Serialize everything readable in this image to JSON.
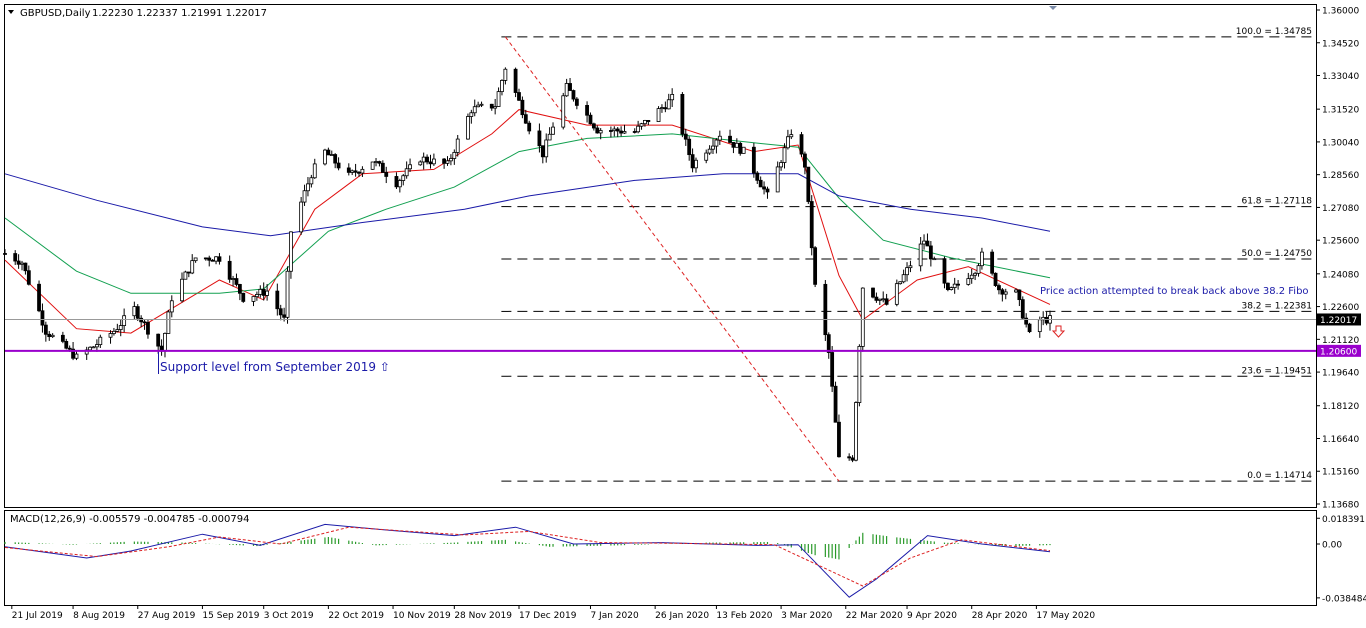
{
  "header": {
    "symbol": "GBPUSD,Daily",
    "ohlc": "1.22230 1.22337 1.21991 1.22017",
    "macd_label": "MACD(12,26,9) -0.005579 -0.004785 -0.000794"
  },
  "colors": {
    "background": "#ffffff",
    "axis_text": "#000000",
    "candle_up": "#ffffff",
    "candle_down": "#000000",
    "ema_fast": "#e01010",
    "ema_mid": "#12a050",
    "ema_slow": "#1a1aa8",
    "fib_lines": "#000000",
    "trend_line": "#dd2222",
    "support_line": "#9900cc",
    "price_tag": "#000000",
    "support_tag": "#9900cc",
    "annotation_text": "#1a1aa8",
    "macd_hist": "#2a9a2a",
    "macd_line": "#1a1aa8",
    "macd_signal": "#dd2222"
  },
  "icons": {
    "support_arrow": "up-arrow-icon",
    "break_arrow": "down-arrow-icon",
    "collapse": "triangle-down-icon"
  },
  "annotations": {
    "support": "Support level from September 2019 ⇧",
    "price_action": "Price action attempted to break back above 38.2 Fibo"
  },
  "chart_data": [
    {
      "type": "candlestick",
      "title": "GBPUSD,Daily",
      "y_axis_ticks": [
        "1.36000",
        "1.34520",
        "1.33040",
        "1.31520",
        "1.30040",
        "1.28560",
        "1.27080",
        "1.25600",
        "1.24080",
        "1.22600",
        "1.21120",
        "1.19640",
        "1.18120",
        "1.16640",
        "1.15160",
        "1.13680"
      ],
      "ylim": [
        1.1368,
        1.36
      ],
      "x_axis_ticks": [
        "21 Jul 2019",
        "8 Aug 2019",
        "27 Aug 2019",
        "15 Sep 2019",
        "3 Oct 2019",
        "22 Oct 2019",
        "10 Nov 2019",
        "28 Nov 2019",
        "17 Dec 2019",
        "7 Jan 2020",
        "26 Jan 2020",
        "13 Feb 2020",
        "3 Mar 2020",
        "22 Mar 2020",
        "9 Apr 2020",
        "28 Apr 2020",
        "17 May 2020"
      ],
      "x_range": [
        "2019-07-19",
        "2020-05-21"
      ],
      "close_anchors": [
        {
          "date": "2019-07-19",
          "close": 1.25
        },
        {
          "date": "2019-07-24",
          "close": 1.246
        },
        {
          "date": "2019-07-31",
          "close": 1.215
        },
        {
          "date": "2019-08-09",
          "close": 1.203
        },
        {
          "date": "2019-08-14",
          "close": 1.208
        },
        {
          "date": "2019-08-20",
          "close": 1.215
        },
        {
          "date": "2019-08-26",
          "close": 1.225
        },
        {
          "date": "2019-09-03",
          "close": 1.206
        },
        {
          "date": "2019-09-06",
          "close": 1.23
        },
        {
          "date": "2019-09-13",
          "close": 1.248
        },
        {
          "date": "2019-09-20",
          "close": 1.248
        },
        {
          "date": "2019-09-27",
          "close": 1.23
        },
        {
          "date": "2019-10-04",
          "close": 1.233
        },
        {
          "date": "2019-10-09",
          "close": 1.22
        },
        {
          "date": "2019-10-11",
          "close": 1.26
        },
        {
          "date": "2019-10-17",
          "close": 1.286
        },
        {
          "date": "2019-10-21",
          "close": 1.296
        },
        {
          "date": "2019-10-28",
          "close": 1.285
        },
        {
          "date": "2019-11-04",
          "close": 1.292
        },
        {
          "date": "2019-11-11",
          "close": 1.282
        },
        {
          "date": "2019-11-18",
          "close": 1.293
        },
        {
          "date": "2019-11-26",
          "close": 1.29
        },
        {
          "date": "2019-12-03",
          "close": 1.315
        },
        {
          "date": "2019-12-10",
          "close": 1.317
        },
        {
          "date": "2019-12-13",
          "close": 1.334
        },
        {
          "date": "2019-12-20",
          "close": 1.307
        },
        {
          "date": "2019-12-24",
          "close": 1.295
        },
        {
          "date": "2019-12-31",
          "close": 1.325
        },
        {
          "date": "2020-01-09",
          "close": 1.306
        },
        {
          "date": "2020-01-20",
          "close": 1.305
        },
        {
          "date": "2020-01-31",
          "close": 1.32
        },
        {
          "date": "2020-02-06",
          "close": 1.29
        },
        {
          "date": "2020-02-14",
          "close": 1.304
        },
        {
          "date": "2020-02-21",
          "close": 1.296
        },
        {
          "date": "2020-02-28",
          "close": 1.276
        },
        {
          "date": "2020-03-06",
          "close": 1.305
        },
        {
          "date": "2020-03-10",
          "close": 1.29
        },
        {
          "date": "2020-03-13",
          "close": 1.235
        },
        {
          "date": "2020-03-17",
          "close": 1.205
        },
        {
          "date": "2020-03-20",
          "close": 1.157
        },
        {
          "date": "2020-03-24",
          "close": 1.158
        },
        {
          "date": "2020-03-27",
          "close": 1.235
        },
        {
          "date": "2020-04-03",
          "close": 1.227
        },
        {
          "date": "2020-04-10",
          "close": 1.245
        },
        {
          "date": "2020-04-14",
          "close": 1.256
        },
        {
          "date": "2020-04-21",
          "close": 1.232
        },
        {
          "date": "2020-04-29",
          "close": 1.243
        },
        {
          "date": "2020-05-01",
          "close": 1.249
        },
        {
          "date": "2020-05-06",
          "close": 1.234
        },
        {
          "date": "2020-05-11",
          "close": 1.232
        },
        {
          "date": "2020-05-15",
          "close": 1.213
        },
        {
          "date": "2020-05-18",
          "close": 1.22
        },
        {
          "date": "2020-05-21",
          "close": 1.2202
        }
      ],
      "moving_averages": [
        {
          "color_key": "ema_fast",
          "points": [
            {
              "date": "2019-07-19",
              "value": 1.247
            },
            {
              "date": "2019-08-09",
              "value": 1.216
            },
            {
              "date": "2019-08-25",
              "value": 1.214
            },
            {
              "date": "2019-09-20",
              "value": 1.238
            },
            {
              "date": "2019-10-03",
              "value": 1.229
            },
            {
              "date": "2019-10-18",
              "value": 1.27
            },
            {
              "date": "2019-11-01",
              "value": 1.286
            },
            {
              "date": "2019-11-22",
              "value": 1.288
            },
            {
              "date": "2019-12-09",
              "value": 1.304
            },
            {
              "date": "2019-12-17",
              "value": 1.315
            },
            {
              "date": "2020-01-06",
              "value": 1.308
            },
            {
              "date": "2020-01-31",
              "value": 1.308
            },
            {
              "date": "2020-02-24",
              "value": 1.296
            },
            {
              "date": "2020-03-08",
              "value": 1.299
            },
            {
              "date": "2020-03-20",
              "value": 1.24
            },
            {
              "date": "2020-03-27",
              "value": 1.22
            },
            {
              "date": "2020-04-12",
              "value": 1.238
            },
            {
              "date": "2020-04-27",
              "value": 1.244
            },
            {
              "date": "2020-05-21",
              "value": 1.227
            }
          ]
        },
        {
          "color_key": "ema_mid",
          "points": [
            {
              "date": "2019-07-19",
              "value": 1.266
            },
            {
              "date": "2019-08-09",
              "value": 1.242
            },
            {
              "date": "2019-08-25",
              "value": 1.232
            },
            {
              "date": "2019-09-20",
              "value": 1.232
            },
            {
              "date": "2019-10-03",
              "value": 1.234
            },
            {
              "date": "2019-10-22",
              "value": 1.26
            },
            {
              "date": "2019-11-08",
              "value": 1.27
            },
            {
              "date": "2019-11-28",
              "value": 1.28
            },
            {
              "date": "2019-12-17",
              "value": 1.296
            },
            {
              "date": "2020-01-06",
              "value": 1.302
            },
            {
              "date": "2020-01-31",
              "value": 1.304
            },
            {
              "date": "2020-02-24",
              "value": 1.3
            },
            {
              "date": "2020-03-08",
              "value": 1.298
            },
            {
              "date": "2020-03-20",
              "value": 1.275
            },
            {
              "date": "2020-04-02",
              "value": 1.256
            },
            {
              "date": "2020-04-22",
              "value": 1.248
            },
            {
              "date": "2020-05-21",
              "value": 1.239
            }
          ]
        },
        {
          "color_key": "ema_slow",
          "points": [
            {
              "date": "2019-07-19",
              "value": 1.286
            },
            {
              "date": "2019-08-15",
              "value": 1.274
            },
            {
              "date": "2019-09-15",
              "value": 1.262
            },
            {
              "date": "2019-10-05",
              "value": 1.258
            },
            {
              "date": "2019-11-01",
              "value": 1.264
            },
            {
              "date": "2019-12-01",
              "value": 1.27
            },
            {
              "date": "2019-12-20",
              "value": 1.276
            },
            {
              "date": "2020-01-20",
              "value": 1.283
            },
            {
              "date": "2020-02-15",
              "value": 1.286
            },
            {
              "date": "2020-03-08",
              "value": 1.286
            },
            {
              "date": "2020-03-20",
              "value": 1.276
            },
            {
              "date": "2020-04-10",
              "value": 1.27
            },
            {
              "date": "2020-05-01",
              "value": 1.266
            },
            {
              "date": "2020-05-21",
              "value": 1.26
            }
          ]
        }
      ],
      "fibonacci": {
        "start_date": "2019-12-13",
        "end_date": "2020-05-21",
        "levels": [
          {
            "label": "100.0 = 1.34785",
            "value": 1.34785
          },
          {
            "label": "61.8 = 1.27118",
            "value": 1.27118
          },
          {
            "label": "50.0 = 1.24750",
            "value": 1.2475
          },
          {
            "label": "38.2 = 1.22381",
            "value": 1.22381
          },
          {
            "label": "23.6 = 1.19451",
            "value": 1.19451
          },
          {
            "label": "0.0 = 1.14714",
            "value": 1.14714
          }
        ]
      },
      "trend_line": {
        "start": {
          "date": "2019-12-13",
          "value": 1.34785
        },
        "end": {
          "date": "2020-03-20",
          "value": 1.14714
        }
      },
      "support": {
        "value": 1.206,
        "label": "1.20600"
      },
      "current_price": {
        "value": 1.22017,
        "label": "1.22017"
      }
    },
    {
      "type": "macd",
      "title": "MACD(12,26,9) -0.005579 -0.004785 -0.000794",
      "y_axis_ticks": [
        "0.018391",
        "0.00",
        "-0.038484"
      ],
      "ylim": [
        -0.04,
        0.02
      ],
      "histogram_anchors": [
        {
          "date": "2019-07-19",
          "value": 0.0015
        },
        {
          "date": "2019-08-08",
          "value": -0.0005
        },
        {
          "date": "2019-08-25",
          "value": 0.0018
        },
        {
          "date": "2019-09-10",
          "value": 0.001
        },
        {
          "date": "2019-10-01",
          "value": -0.0015
        },
        {
          "date": "2019-10-22",
          "value": 0.005
        },
        {
          "date": "2019-11-05",
          "value": -0.001
        },
        {
          "date": "2019-11-28",
          "value": 0.001
        },
        {
          "date": "2019-12-13",
          "value": 0.003
        },
        {
          "date": "2019-12-26",
          "value": -0.002
        },
        {
          "date": "2020-01-15",
          "value": -0.001
        },
        {
          "date": "2020-02-10",
          "value": 0.001
        },
        {
          "date": "2020-03-01",
          "value": 0.0015
        },
        {
          "date": "2020-03-13",
          "value": -0.008
        },
        {
          "date": "2020-03-20",
          "value": -0.011
        },
        {
          "date": "2020-03-27",
          "value": 0.008
        },
        {
          "date": "2020-04-05",
          "value": 0.005
        },
        {
          "date": "2020-04-20",
          "value": 0.001
        },
        {
          "date": "2020-05-10",
          "value": -0.0015
        },
        {
          "date": "2020-05-21",
          "value": -0.0008
        }
      ],
      "macd_anchors": [
        {
          "date": "2019-07-19",
          "value": -0.002
        },
        {
          "date": "2019-08-12",
          "value": -0.01
        },
        {
          "date": "2019-08-25",
          "value": -0.005
        },
        {
          "date": "2019-09-15",
          "value": 0.007
        },
        {
          "date": "2019-10-02",
          "value": -0.001
        },
        {
          "date": "2019-10-21",
          "value": 0.014
        },
        {
          "date": "2019-11-08",
          "value": 0.01
        },
        {
          "date": "2019-11-28",
          "value": 0.006
        },
        {
          "date": "2019-12-16",
          "value": 0.012
        },
        {
          "date": "2020-01-02",
          "value": 0.0
        },
        {
          "date": "2020-01-28",
          "value": 0.001
        },
        {
          "date": "2020-02-25",
          "value": -0.001
        },
        {
          "date": "2020-03-08",
          "value": -0.0005
        },
        {
          "date": "2020-03-23",
          "value": -0.038
        },
        {
          "date": "2020-03-31",
          "value": -0.025
        },
        {
          "date": "2020-04-15",
          "value": 0.006
        },
        {
          "date": "2020-05-01",
          "value": 0.0
        },
        {
          "date": "2020-05-21",
          "value": -0.0056
        }
      ],
      "signal_anchors": [
        {
          "date": "2019-07-19",
          "value": -0.0025
        },
        {
          "date": "2019-08-15",
          "value": -0.009
        },
        {
          "date": "2019-09-05",
          "value": -0.002
        },
        {
          "date": "2019-09-20",
          "value": 0.005
        },
        {
          "date": "2019-10-08",
          "value": 0.0
        },
        {
          "date": "2019-10-28",
          "value": 0.012
        },
        {
          "date": "2019-11-15",
          "value": 0.009
        },
        {
          "date": "2019-12-01",
          "value": 0.0065
        },
        {
          "date": "2019-12-20",
          "value": 0.009
        },
        {
          "date": "2020-01-10",
          "value": 0.001
        },
        {
          "date": "2020-02-01",
          "value": 0.0005
        },
        {
          "date": "2020-03-01",
          "value": -0.0005
        },
        {
          "date": "2020-03-27",
          "value": -0.03
        },
        {
          "date": "2020-04-10",
          "value": -0.01
        },
        {
          "date": "2020-04-25",
          "value": 0.003
        },
        {
          "date": "2020-05-21",
          "value": -0.0048
        }
      ]
    }
  ]
}
